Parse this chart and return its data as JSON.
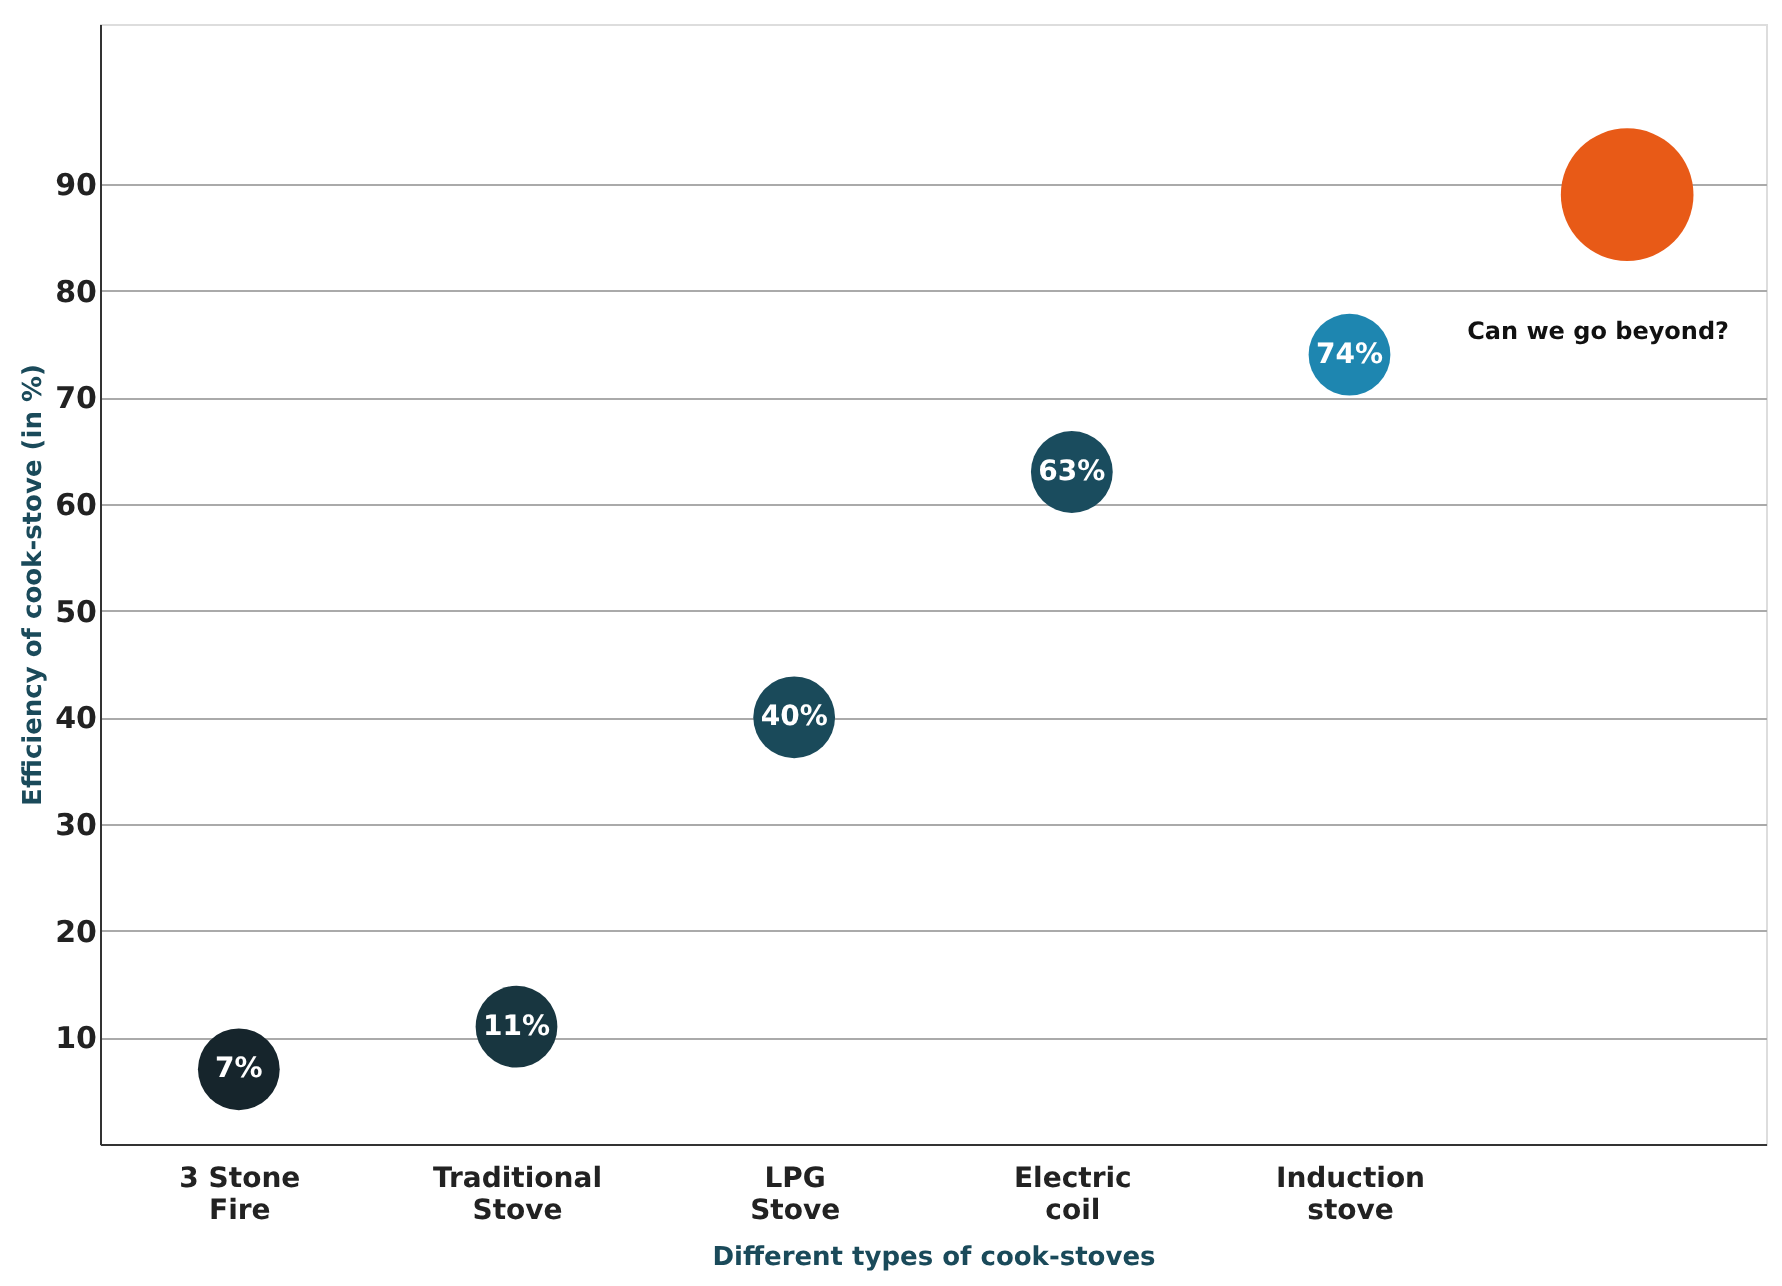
{
  "chart_data": {
    "type": "bubble",
    "xlabel": "Different types of cook-stoves",
    "ylabel": "Efficiency of cook-stove (in %)",
    "categories": [
      "3 Stone Fire",
      "Traditional Stove",
      "LPG Stove",
      "Electric coil",
      "Induction stove",
      null
    ],
    "values": [
      7,
      11,
      40,
      63,
      74,
      89
    ],
    "sizes": [
      0.38,
      0.38,
      0.38,
      0.38,
      0.38,
      1
    ],
    "value_labels": [
      "7%",
      "11%",
      "40%",
      "63%",
      "74%",
      null
    ],
    "colors": [
      "#16252c",
      "#183640",
      "#1a4a5a",
      "#1a4c5e",
      "#1e86b0",
      "#e85a17"
    ],
    "ylim": [
      0,
      105
    ],
    "yticks": [
      10,
      20,
      30,
      40,
      50,
      60,
      70,
      80,
      90
    ],
    "grid": "y",
    "annotations": [
      "Can we go beyond?"
    ]
  }
}
